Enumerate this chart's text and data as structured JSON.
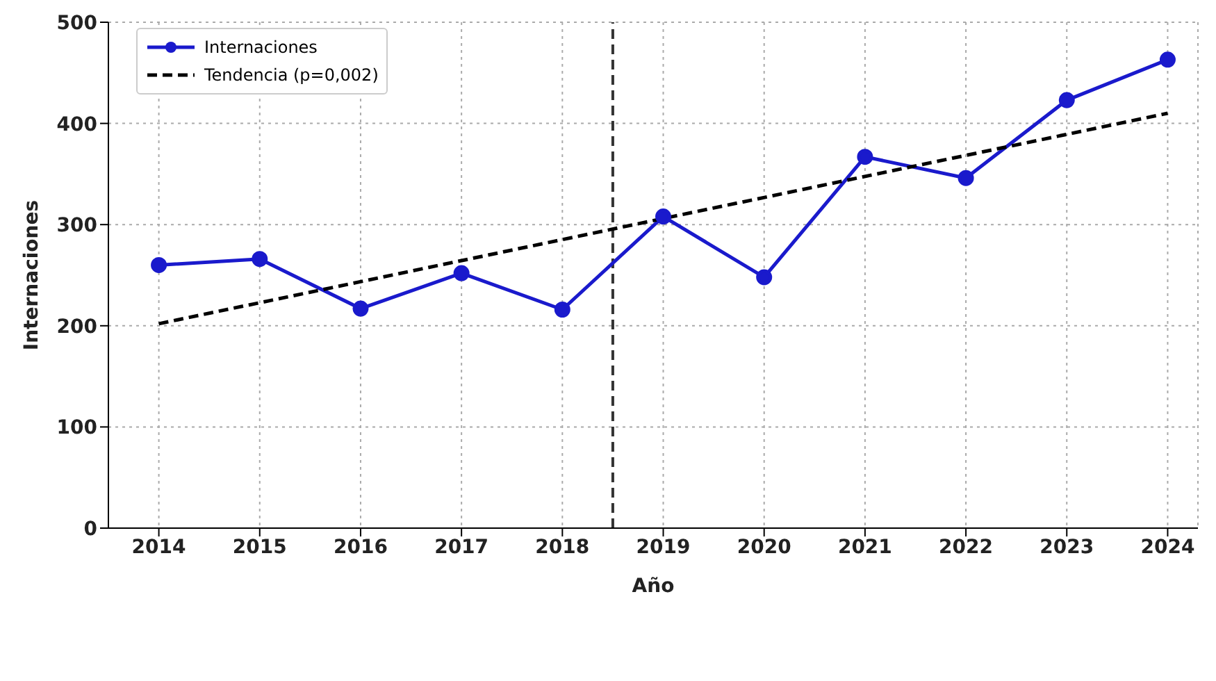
{
  "chart_data": {
    "type": "line",
    "xlabel": "Año",
    "ylabel": "Internaciones",
    "x": [
      2014,
      2015,
      2016,
      2017,
      2018,
      2019,
      2020,
      2021,
      2022,
      2023,
      2024
    ],
    "series": [
      {
        "name": "Internaciones",
        "color": "#1a1acc",
        "values": [
          260,
          266,
          217,
          252,
          216,
          308,
          248,
          367,
          346,
          423,
          463
        ],
        "marker": "circle",
        "line_style": "solid"
      },
      {
        "name": "Tendencia (p=0,002)",
        "type": "line",
        "color": "#000000",
        "x": [
          2014,
          2024
        ],
        "values": [
          202,
          410
        ],
        "marker": "none",
        "line_style": "dashed"
      }
    ],
    "xlim": [
      2013.5,
      2024.3
    ],
    "xticks": [
      2014,
      2015,
      2016,
      2017,
      2018,
      2019,
      2020,
      2021,
      2022,
      2023,
      2024
    ],
    "ylim": [
      0,
      500
    ],
    "yticks": [
      0,
      100,
      200,
      300,
      400,
      500
    ],
    "ref_lines": [
      {
        "axis": "x",
        "value": 2018.5,
        "color": "#333333",
        "line_style": "dashed"
      }
    ],
    "grid": true,
    "legend": "top left"
  }
}
